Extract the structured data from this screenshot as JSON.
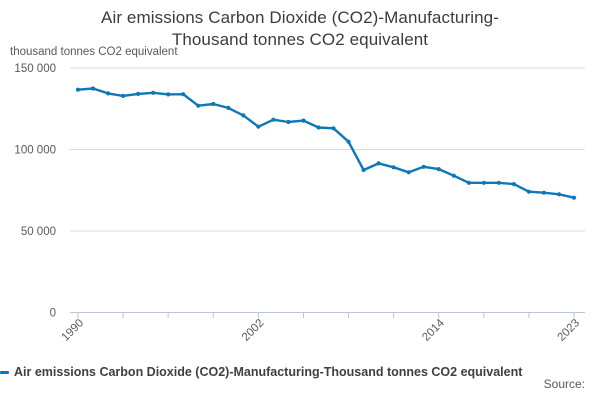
{
  "header": {
    "title_line1": "Air emissions Carbon Dioxide (CO2)-Manufacturing-",
    "title_line2": "Thousand tonnes CO2 equivalent"
  },
  "axis": {
    "unit_label": "thousand tonnes CO2 equivalent"
  },
  "legend": {
    "label": "Air emissions Carbon Dioxide (CO2)-Manufacturing-Thousand tonnes CO2 equivalent"
  },
  "source": {
    "label": "Source:"
  },
  "colors": {
    "line": "#0e77b8",
    "grid": "#d9d9d9",
    "axis": "#b9c6dc",
    "tick_text": "#595959",
    "title_text": "#3c3c3c",
    "legend_text": "#404040"
  },
  "chart_data": {
    "type": "line",
    "title": "Air emissions Carbon Dioxide (CO2)-Manufacturing-Thousand tonnes CO2 equivalent",
    "ylabel": "thousand tonnes CO2 equivalent",
    "xlabel": "",
    "grid": true,
    "legend_position": "bottom-left",
    "ylim": [
      0,
      150000
    ],
    "x": [
      1990,
      1991,
      1992,
      1993,
      1994,
      1995,
      1996,
      1997,
      1998,
      1999,
      2000,
      2001,
      2002,
      2003,
      2004,
      2005,
      2006,
      2007,
      2008,
      2009,
      2010,
      2011,
      2012,
      2013,
      2014,
      2015,
      2016,
      2017,
      2018,
      2019,
      2020,
      2021,
      2022,
      2023
    ],
    "series": [
      {
        "name": "Air emissions Carbon Dioxide (CO2)-Manufacturing-Thousand tonnes CO2 equivalent",
        "color": "#0e77b8",
        "values": [
          136700,
          137400,
          134400,
          132900,
          134100,
          134800,
          133800,
          133900,
          126900,
          127900,
          125500,
          120900,
          114000,
          118300,
          116900,
          117700,
          113500,
          113000,
          104800,
          87400,
          91500,
          89100,
          86000,
          89400,
          88000,
          83900,
          79600,
          79600,
          79600,
          78800,
          74100,
          73500,
          72500,
          70400
        ]
      }
    ],
    "yticks": [
      {
        "value": 0,
        "label": "0"
      },
      {
        "value": 50000,
        "label": "50 000"
      },
      {
        "value": 100000,
        "label": "100 000"
      },
      {
        "value": 150000,
        "label": "150 000"
      }
    ],
    "xticks_minor": [
      1990,
      1993,
      1996,
      1999,
      2002,
      2005,
      2008,
      2011,
      2014,
      2017,
      2020,
      2023
    ],
    "xticks_labeled": [
      {
        "year": 1990,
        "label": "1990"
      },
      {
        "year": 2002,
        "label": "2002"
      },
      {
        "year": 2014,
        "label": "2014"
      },
      {
        "year": 2023,
        "label": "2023"
      }
    ]
  }
}
